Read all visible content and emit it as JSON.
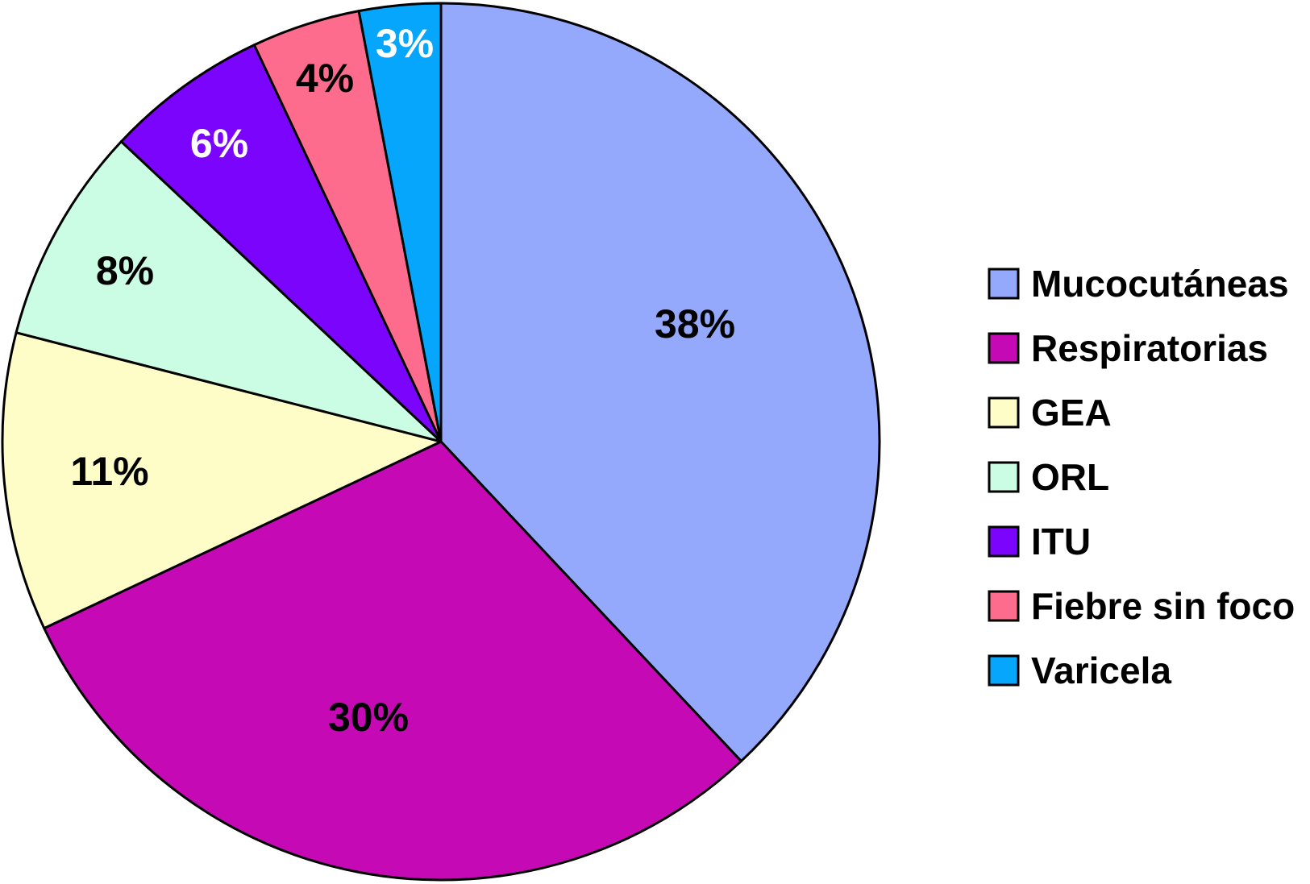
{
  "chart_data": {
    "type": "pie",
    "title": "",
    "start_angle_deg": 0,
    "direction": "clockwise",
    "legend_position": "right",
    "slices": [
      {
        "name": "Mucocutáneas",
        "value": 38,
        "label": "38%",
        "color": "#94a8fc",
        "label_color": "#000000"
      },
      {
        "name": "Respiratorias",
        "value": 30,
        "label": "30%",
        "color": "#c509b5",
        "label_color": "#000000"
      },
      {
        "name": "GEA",
        "value": 11,
        "label": "11%",
        "color": "#fefdc8",
        "label_color": "#000000"
      },
      {
        "name": "ORL",
        "value": 8,
        "label": "8%",
        "color": "#cbfde4",
        "label_color": "#000000"
      },
      {
        "name": "ITU",
        "value": 6,
        "label": "6%",
        "color": "#7b05fc",
        "label_color": "#ffffff"
      },
      {
        "name": "Fiebre sin foco",
        "value": 4,
        "label": "4%",
        "color": "#fd6c8c",
        "label_color": "#000000"
      },
      {
        "name": "Varicela",
        "value": 3,
        "label": "3%",
        "color": "#05a6fc",
        "label_color": "#ffffff"
      }
    ]
  }
}
